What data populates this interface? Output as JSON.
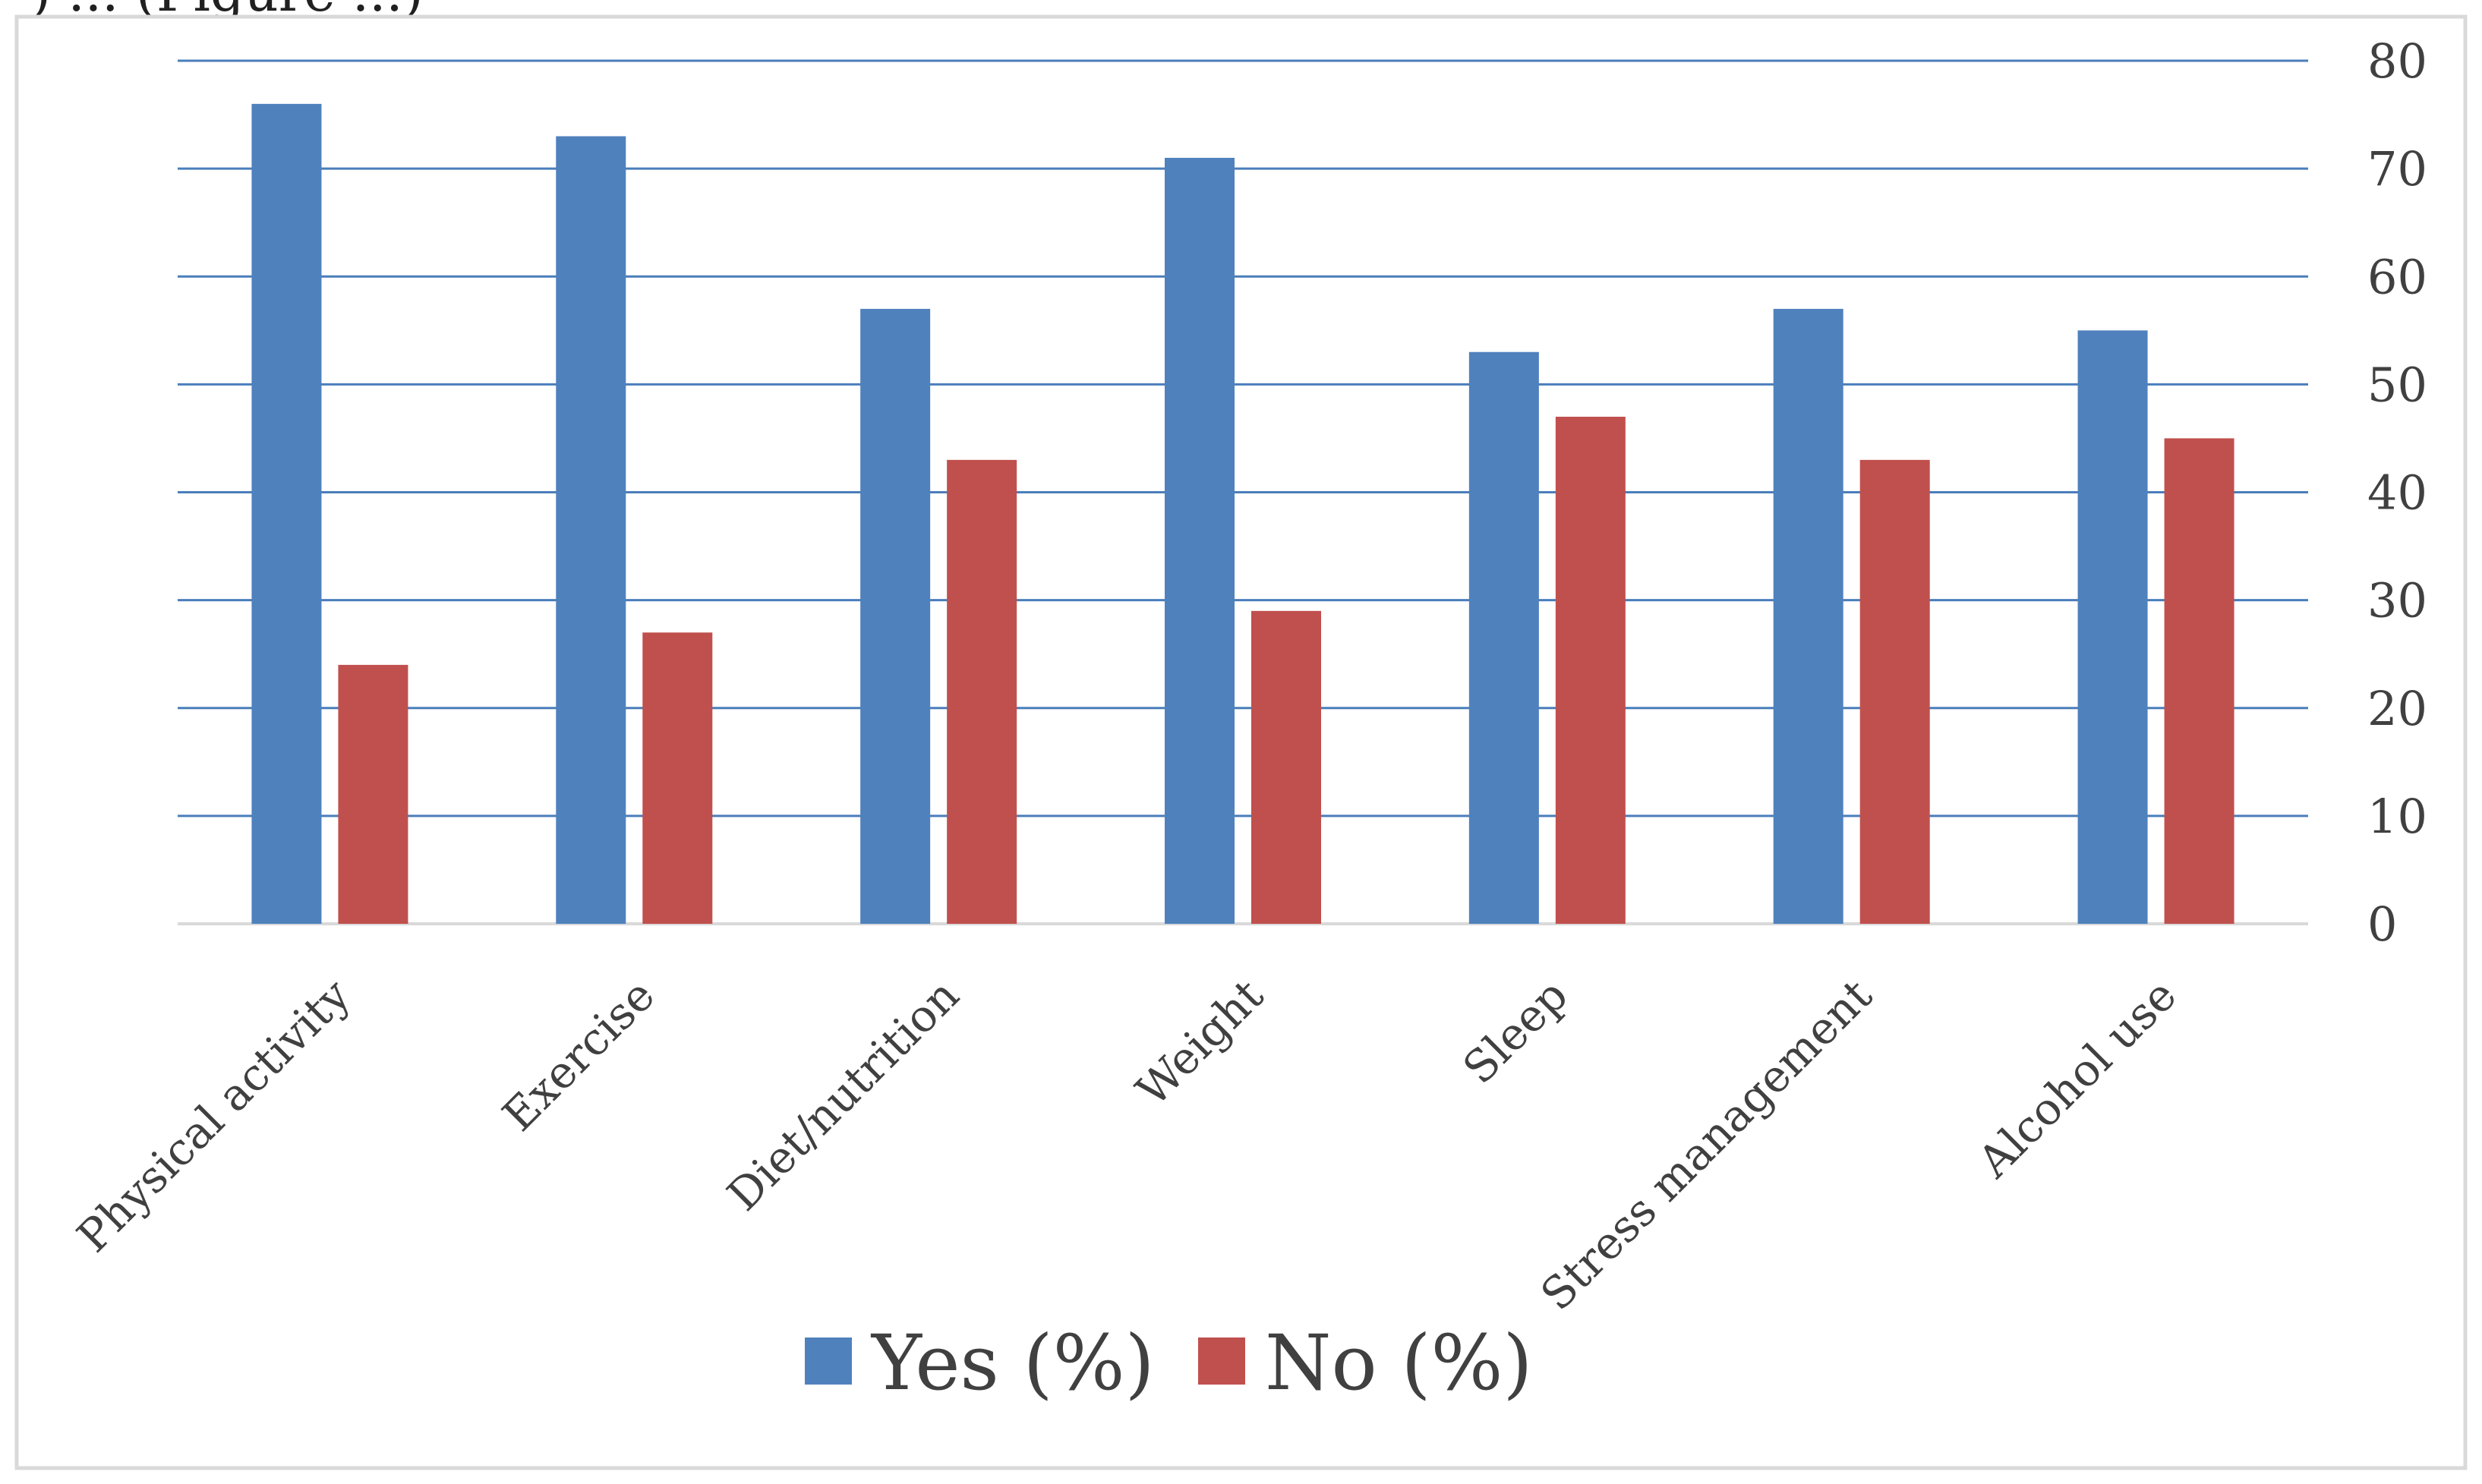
{
  "caption_fragment": ") ... (Figure ...)",
  "chart_data": {
    "type": "bar",
    "categories": [
      "Physical activity",
      "Exercise",
      "Diet/nutrition",
      "Weight",
      "Sleep",
      "Stress management",
      "Alcohol use"
    ],
    "series": [
      {
        "name": "Yes (%)",
        "color": "#4f81bd",
        "values": [
          76,
          73,
          57,
          71,
          53,
          57,
          55
        ]
      },
      {
        "name": "No (%)",
        "color": "#c0504d",
        "values": [
          24,
          27,
          43,
          29,
          47,
          43,
          45
        ]
      }
    ],
    "y_axis": {
      "position": "right",
      "ylim": [
        0,
        80
      ],
      "ticks": [
        0,
        10,
        20,
        30,
        40,
        50,
        60,
        70,
        80
      ]
    },
    "grid": true,
    "grid_color": "#4a7ebb",
    "legend": {
      "placement": "bottom-center"
    },
    "title": "",
    "xlabel": "",
    "ylabel": ""
  }
}
